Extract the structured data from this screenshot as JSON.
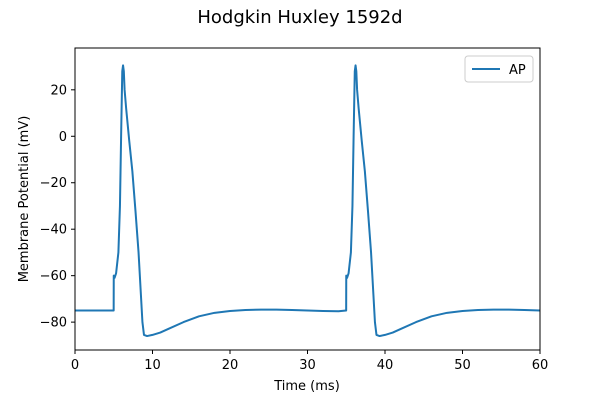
{
  "chart_data": {
    "type": "line",
    "title": "Hodgkin Huxley 1592d",
    "xlabel": "Time (ms)",
    "ylabel": "Membrane Potential (mV)",
    "xlim": [
      0,
      60
    ],
    "ylim": [
      -92,
      38
    ],
    "xticks": [
      0,
      10,
      20,
      30,
      40,
      50,
      60
    ],
    "yticks": [
      -80,
      -60,
      -40,
      -20,
      0,
      20
    ],
    "grid": false,
    "legend_position": "top-right",
    "series": [
      {
        "name": "AP",
        "color": "#1f77b4",
        "x": [
          0,
          4.99,
          5.0,
          5.1,
          5.3,
          5.6,
          5.8,
          5.95,
          6.1,
          6.2,
          6.3,
          6.4,
          6.6,
          6.8,
          7.0,
          7.4,
          7.8,
          8.2,
          8.5,
          8.7,
          8.9,
          9.3,
          10,
          11,
          12,
          14,
          16,
          18,
          20,
          22,
          24,
          26,
          28,
          30,
          32,
          34,
          34.99,
          35.0,
          35.1,
          35.3,
          35.6,
          35.8,
          35.95,
          36.1,
          36.2,
          36.3,
          36.4,
          36.6,
          36.8,
          37.0,
          37.4,
          37.8,
          38.2,
          38.5,
          38.7,
          38.9,
          39.3,
          40,
          41,
          42,
          44,
          46,
          48,
          50,
          52,
          54,
          56,
          58,
          60
        ],
        "y": [
          -75,
          -75,
          -60,
          -61,
          -59,
          -50,
          -30,
          0,
          28,
          30.5,
          28,
          20,
          12,
          5,
          -2,
          -15,
          -32,
          -50,
          -68,
          -80,
          -85.5,
          -86,
          -85.5,
          -84.5,
          -83,
          -80,
          -77.5,
          -76,
          -75.2,
          -74.8,
          -74.6,
          -74.6,
          -74.8,
          -75,
          -75.2,
          -75.3,
          -75,
          -60,
          -61,
          -59,
          -50,
          -30,
          0,
          28,
          30.5,
          28,
          20,
          12,
          5,
          -2,
          -15,
          -32,
          -50,
          -68,
          -80,
          -85.5,
          -86,
          -85.5,
          -84.5,
          -83,
          -80,
          -77.5,
          -76,
          -75.2,
          -74.8,
          -74.6,
          -74.6,
          -74.8,
          -75
        ]
      }
    ]
  }
}
